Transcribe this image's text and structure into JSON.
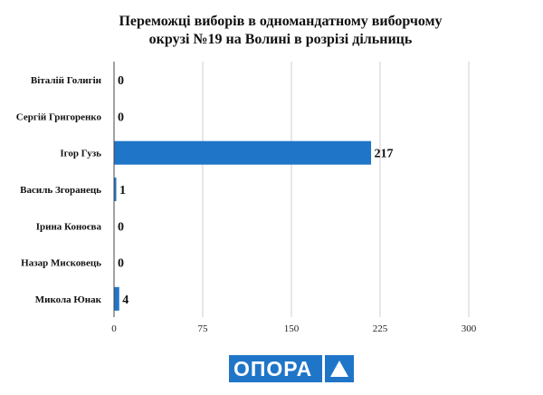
{
  "chart_data": {
    "type": "bar",
    "orientation": "horizontal",
    "title": [
      "Переможці виборів в одномандатному виборчому",
      "окрузі №19 на Волині в розрізі дільниць"
    ],
    "categories": [
      "Віталій Голигін",
      "Сергій Григоренко",
      "Ігор Гузь",
      "Василь Згоранець",
      "Ірина Коноєва",
      "Назар Мисковець",
      "Микола Юнак"
    ],
    "values": [
      0,
      0,
      217,
      1,
      0,
      0,
      4
    ],
    "data_labels": [
      "0",
      "0",
      "217",
      "1",
      "0",
      "0",
      "4"
    ],
    "x_ticks": [
      0,
      75,
      150,
      225,
      300
    ],
    "x_tick_labels": [
      "0",
      "75",
      "150",
      "225",
      "300"
    ],
    "xlim": [
      0,
      300
    ],
    "grid": "vertical",
    "legend": "none",
    "bar_color": "#1f75c8"
  },
  "logo": {
    "text": "ОПОРА",
    "icon": "triangle-icon",
    "color": "#1f75c8"
  }
}
